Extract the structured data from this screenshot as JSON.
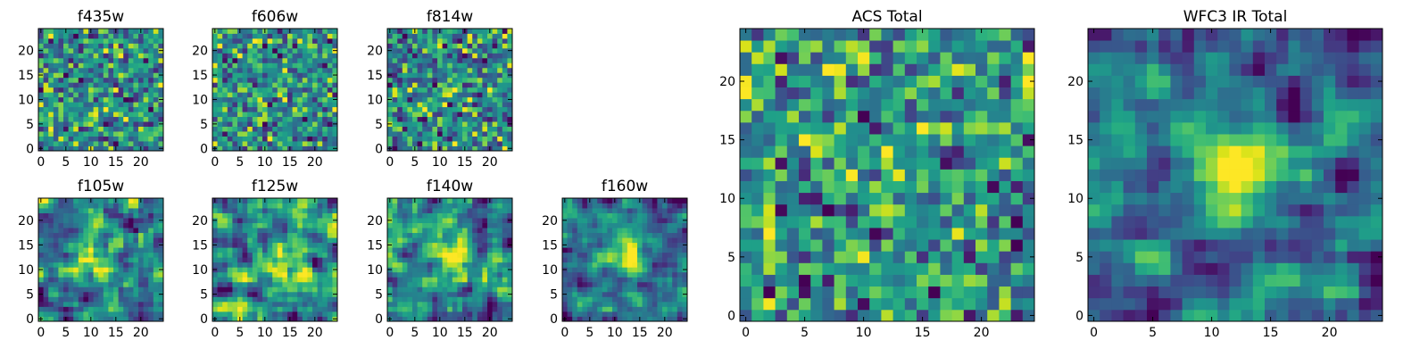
{
  "chart_data": [
    {
      "type": "heatmap",
      "title": "f435w",
      "colormap": "viridis",
      "grid": false,
      "xlim": [
        0,
        25
      ],
      "ylim": [
        0,
        25
      ],
      "x_ticks": [
        "0",
        "5",
        "10",
        "15",
        "20"
      ],
      "y_ticks": [
        "0",
        "5",
        "10",
        "15",
        "20"
      ],
      "shape": [
        25,
        25
      ],
      "values_description": "noise",
      "seed": 11
    },
    {
      "type": "heatmap",
      "title": "f606w",
      "colormap": "viridis",
      "grid": false,
      "xlim": [
        0,
        25
      ],
      "ylim": [
        0,
        25
      ],
      "x_ticks": [
        "0",
        "5",
        "10",
        "15",
        "20"
      ],
      "y_ticks": [
        "0",
        "5",
        "10",
        "15",
        "20"
      ],
      "shape": [
        25,
        25
      ],
      "values_description": "noise",
      "seed": 23
    },
    {
      "type": "heatmap",
      "title": "f814w",
      "colormap": "viridis",
      "grid": false,
      "xlim": [
        0,
        25
      ],
      "ylim": [
        0,
        25
      ],
      "x_ticks": [
        "0",
        "5",
        "10",
        "15",
        "20"
      ],
      "y_ticks": [
        "0",
        "5",
        "10",
        "15",
        "20"
      ],
      "shape": [
        25,
        25
      ],
      "values_description": "noise with faint central source",
      "seed": 37
    },
    {
      "type": "heatmap",
      "title": "f105w",
      "colormap": "viridis",
      "grid": false,
      "xlim": [
        0,
        25
      ],
      "ylim": [
        0,
        25
      ],
      "x_ticks": [
        "0",
        "5",
        "10",
        "15",
        "20"
      ],
      "y_ticks": [
        "0",
        "5",
        "10",
        "15",
        "20"
      ],
      "shape": [
        25,
        25
      ],
      "values_description": "smoothed noise with central source",
      "seed": 51
    },
    {
      "type": "heatmap",
      "title": "f125w",
      "colormap": "viridis",
      "grid": false,
      "xlim": [
        0,
        25
      ],
      "ylim": [
        0,
        25
      ],
      "x_ticks": [
        "0",
        "5",
        "10",
        "15",
        "20"
      ],
      "y_ticks": [
        "0",
        "5",
        "10",
        "15",
        "20"
      ],
      "shape": [
        25,
        25
      ],
      "values_description": "smoothed noise with central source",
      "seed": 67
    },
    {
      "type": "heatmap",
      "title": "f140w",
      "colormap": "viridis",
      "grid": false,
      "xlim": [
        0,
        25
      ],
      "ylim": [
        0,
        25
      ],
      "x_ticks": [
        "0",
        "5",
        "10",
        "15",
        "20"
      ],
      "y_ticks": [
        "0",
        "5",
        "10",
        "15",
        "20"
      ],
      "shape": [
        25,
        25
      ],
      "values_description": "smoothed noise with central source",
      "seed": 79
    },
    {
      "type": "heatmap",
      "title": "f160w",
      "colormap": "viridis",
      "grid": false,
      "xlim": [
        0,
        25
      ],
      "ylim": [
        0,
        25
      ],
      "x_ticks": [
        "0",
        "5",
        "10",
        "15",
        "20"
      ],
      "y_ticks": [
        "0",
        "5",
        "10",
        "15",
        "20"
      ],
      "shape": [
        25,
        25
      ],
      "values_description": "smoothed noise with bright central source",
      "seed": 97
    },
    {
      "type": "heatmap",
      "title": "ACS Total",
      "colormap": "viridis",
      "grid": false,
      "xlim": [
        0,
        25
      ],
      "ylim": [
        0,
        25
      ],
      "x_ticks": [
        "0",
        "5",
        "10",
        "15",
        "20"
      ],
      "y_ticks": [
        "0",
        "5",
        "10",
        "15",
        "20"
      ],
      "shape": [
        25,
        25
      ],
      "values_description": "noise with faint central source",
      "seed": 131
    },
    {
      "type": "heatmap",
      "title": "WFC3 IR Total",
      "colormap": "viridis",
      "grid": false,
      "xlim": [
        0,
        25
      ],
      "ylim": [
        0,
        25
      ],
      "x_ticks": [
        "0",
        "5",
        "10",
        "15",
        "20"
      ],
      "y_ticks": [
        "0",
        "5",
        "10",
        "15",
        "20"
      ],
      "shape": [
        25,
        25
      ],
      "values_description": "smoothed noise with bright central source",
      "seed": 173
    }
  ]
}
